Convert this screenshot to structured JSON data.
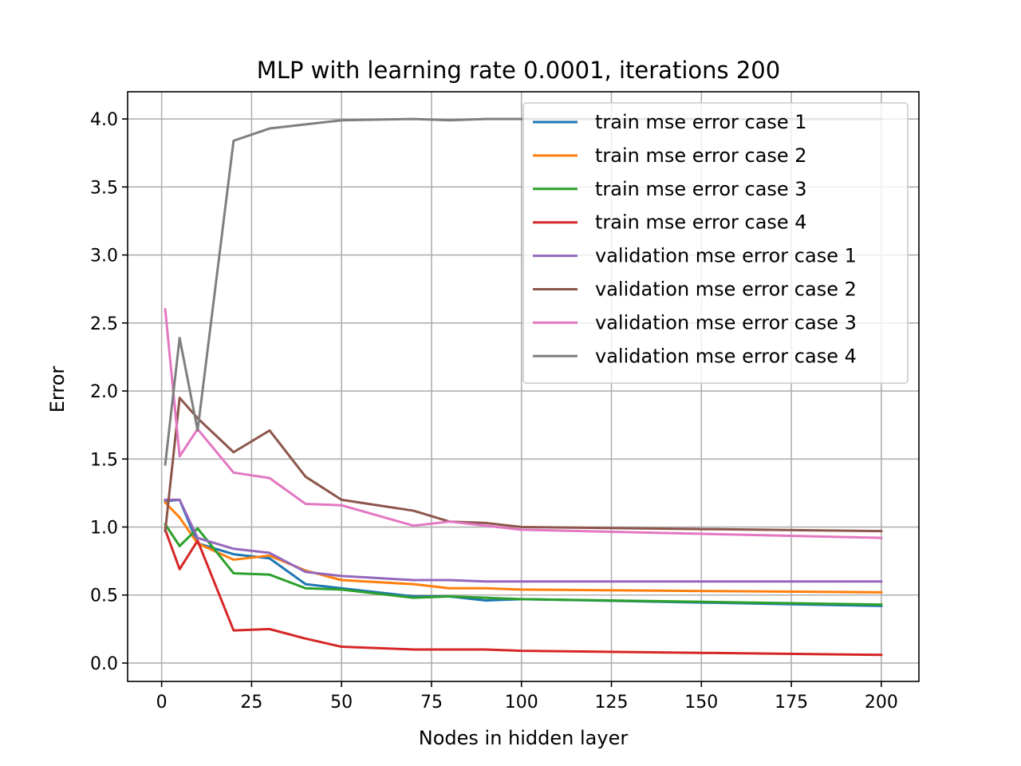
{
  "chart_data": {
    "type": "line",
    "title": "MLP with learning rate 0.0001, iterations 200",
    "xlabel": "Nodes in hidden layer",
    "ylabel": "Error",
    "xlim": [
      -9.45,
      210.45
    ],
    "ylim": [
      -0.135,
      4.2
    ],
    "xticks": [
      0,
      25,
      50,
      75,
      100,
      125,
      150,
      175,
      200
    ],
    "yticks": [
      0.0,
      0.5,
      1.0,
      1.5,
      2.0,
      2.5,
      3.0,
      3.5,
      4.0
    ],
    "ytick_labels": [
      "0.0",
      "0.5",
      "1.0",
      "1.5",
      "2.0",
      "2.5",
      "3.0",
      "3.5",
      "4.0"
    ],
    "grid": true,
    "legend_position": "top-right",
    "x": [
      1,
      5,
      10,
      20,
      30,
      40,
      50,
      70,
      80,
      90,
      100,
      200
    ],
    "series": [
      {
        "name": "train mse error case 1",
        "color": "#1f77b4",
        "values": [
          1.19,
          1.2,
          0.88,
          0.8,
          0.77,
          0.58,
          0.55,
          0.49,
          0.49,
          0.46,
          0.47,
          0.42
        ]
      },
      {
        "name": "train mse error case 2",
        "color": "#ff7f0e",
        "values": [
          1.18,
          1.07,
          0.88,
          0.76,
          0.79,
          0.68,
          0.61,
          0.58,
          0.55,
          0.55,
          0.54,
          0.52
        ]
      },
      {
        "name": "train mse error case 3",
        "color": "#2ca02c",
        "values": [
          1.02,
          0.86,
          0.99,
          0.66,
          0.65,
          0.55,
          0.54,
          0.48,
          0.49,
          0.48,
          0.47,
          0.43
        ]
      },
      {
        "name": "train mse error case 4",
        "color": "#d62728",
        "values": [
          0.98,
          0.69,
          0.9,
          0.24,
          0.25,
          0.18,
          0.12,
          0.1,
          0.1,
          0.1,
          0.09,
          0.06
        ]
      },
      {
        "name": "validation mse error case 1",
        "color": "#9467bd",
        "values": [
          1.2,
          1.2,
          0.92,
          0.84,
          0.81,
          0.67,
          0.64,
          0.61,
          0.61,
          0.6,
          0.6,
          0.6
        ]
      },
      {
        "name": "validation mse error case 2",
        "color": "#8c564b",
        "values": [
          0.97,
          1.95,
          1.8,
          1.55,
          1.71,
          1.37,
          1.2,
          1.12,
          1.04,
          1.03,
          1.0,
          0.97
        ]
      },
      {
        "name": "validation mse error case 3",
        "color": "#e377c2",
        "values": [
          2.6,
          1.52,
          1.72,
          1.4,
          1.36,
          1.17,
          1.16,
          1.01,
          1.04,
          1.01,
          0.98,
          0.92
        ]
      },
      {
        "name": "validation mse error case 4",
        "color": "#7f7f7f",
        "values": [
          1.46,
          2.39,
          1.71,
          3.84,
          3.93,
          3.96,
          3.99,
          4.0,
          3.99,
          4.0,
          4.0,
          4.0
        ]
      }
    ]
  }
}
